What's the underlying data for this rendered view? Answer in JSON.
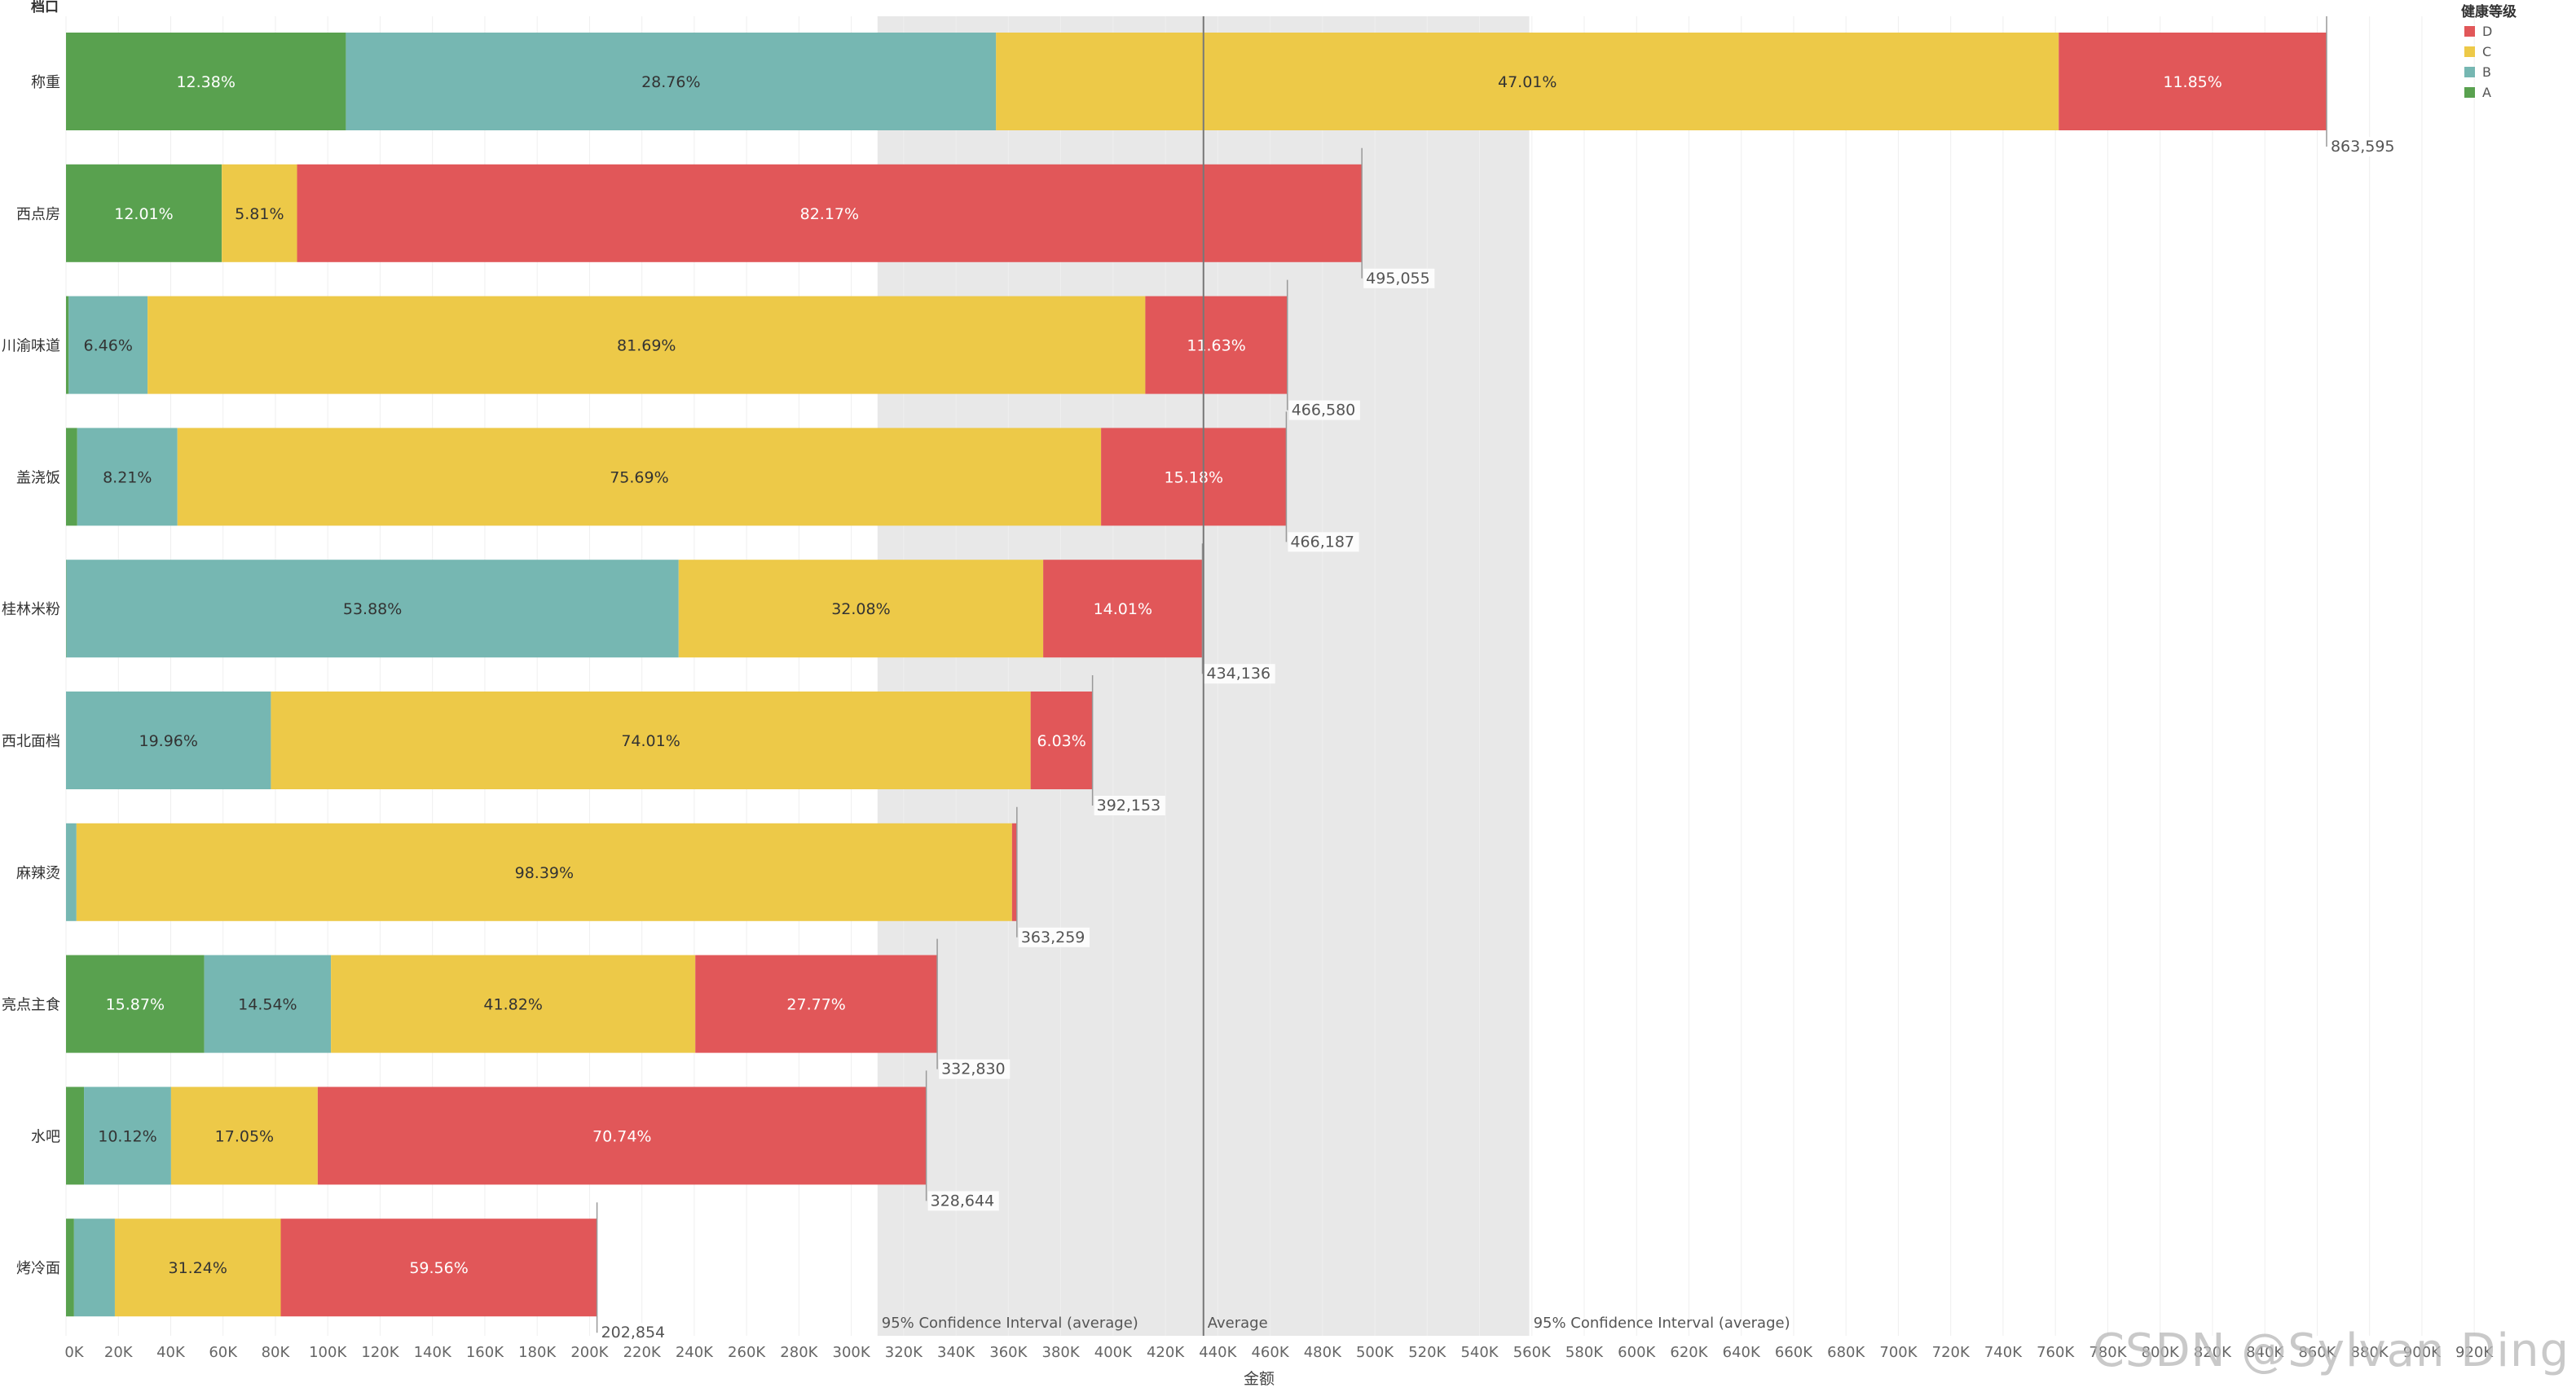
{
  "chart_data": {
    "type": "bar",
    "orientation": "horizontal",
    "stacked": true,
    "row_header": "档口",
    "xlabel": "金额",
    "xlim": [
      0,
      940000
    ],
    "xtick_step": 20000,
    "xtick_labels": [
      "0K",
      "20K",
      "40K",
      "60K",
      "80K",
      "100K",
      "120K",
      "140K",
      "160K",
      "180K",
      "200K",
      "220K",
      "240K",
      "260K",
      "280K",
      "300K",
      "320K",
      "340K",
      "360K",
      "380K",
      "400K",
      "420K",
      "440K",
      "460K",
      "480K",
      "500K",
      "520K",
      "540K",
      "560K",
      "580K",
      "600K",
      "620K",
      "640K",
      "660K",
      "680K",
      "700K",
      "720K",
      "740K",
      "760K",
      "780K",
      "800K",
      "820K",
      "840K",
      "860K",
      "880K",
      "900K",
      "920K"
    ],
    "legend_title": "健康等级",
    "legend_items": [
      {
        "name": "D",
        "color": "#e15759"
      },
      {
        "name": "C",
        "color": "#edc948"
      },
      {
        "name": "B",
        "color": "#76b7b2"
      },
      {
        "name": "A",
        "color": "#59a14f"
      }
    ],
    "colors": {
      "A": "#59a14f",
      "B": "#76b7b2",
      "C": "#edc948",
      "D": "#e15759"
    },
    "stack_order": [
      "A",
      "B",
      "C",
      "D"
    ],
    "categories": [
      {
        "name": "称重",
        "total": 863595,
        "total_label": "863,595",
        "shares": {
          "A": 12.38,
          "B": 28.76,
          "C": 47.01,
          "D": 11.85
        },
        "labels": {
          "A": "12.38%",
          "B": "28.76%",
          "C": "47.01%",
          "D": "11.85%"
        }
      },
      {
        "name": "西点房",
        "total": 495055,
        "total_label": "495,055",
        "shares": {
          "A": 12.01,
          "B": 0.01,
          "C": 5.81,
          "D": 82.17
        },
        "labels": {
          "A": "12.01%",
          "C": "5.81%",
          "D": "82.17%"
        }
      },
      {
        "name": "川渝味道",
        "total": 466580,
        "total_label": "466,580",
        "shares": {
          "A": 0.22,
          "B": 6.46,
          "C": 81.69,
          "D": 11.63
        },
        "labels": {
          "B": "6.46%",
          "C": "81.69%",
          "D": "11.63%"
        }
      },
      {
        "name": "盖浇饭",
        "total": 466187,
        "total_label": "466,187",
        "shares": {
          "A": 0.92,
          "B": 8.21,
          "C": 75.69,
          "D": 15.18
        },
        "labels": {
          "B": "8.21%",
          "C": "75.69%",
          "D": "15.18%"
        }
      },
      {
        "name": "桂林米粉",
        "total": 434136,
        "total_label": "434,136",
        "shares": {
          "A": 0.03,
          "B": 53.88,
          "C": 32.08,
          "D": 14.01
        },
        "labels": {
          "B": "53.88%",
          "C": "32.08%",
          "D": "14.01%"
        }
      },
      {
        "name": "西北面档",
        "total": 392153,
        "total_label": "392,153",
        "shares": {
          "A": 0.0,
          "B": 19.96,
          "C": 74.01,
          "D": 6.03
        },
        "labels": {
          "B": "19.96%",
          "C": "74.01%",
          "D": "6.03%"
        }
      },
      {
        "name": "麻辣烫",
        "total": 363259,
        "total_label": "363,259",
        "shares": {
          "A": 0.0,
          "B": 1.1,
          "C": 98.39,
          "D": 0.51
        },
        "labels": {
          "C": "98.39%"
        }
      },
      {
        "name": "亮点主食",
        "total": 332830,
        "total_label": "332,830",
        "shares": {
          "A": 15.87,
          "B": 14.54,
          "C": 41.82,
          "D": 27.77
        },
        "labels": {
          "A": "15.87%",
          "B": "14.54%",
          "C": "41.82%",
          "D": "27.77%"
        }
      },
      {
        "name": "水吧",
        "total": 328644,
        "total_label": "328,644",
        "shares": {
          "A": 2.09,
          "B": 10.12,
          "C": 17.05,
          "D": 70.74
        },
        "labels": {
          "B": "10.12%",
          "C": "17.05%",
          "D": "70.74%"
        }
      },
      {
        "name": "烤冷面",
        "total": 202854,
        "total_label": "202,854",
        "shares": {
          "A": 1.51,
          "B": 7.69,
          "C": 31.24,
          "D": 59.56
        },
        "labels": {
          "C": "31.24%",
          "D": "59.56%"
        }
      }
    ],
    "reference": {
      "average": 434536,
      "ci_low": 310000,
      "ci_high": 559000,
      "average_label": "Average",
      "ci_label": "95% Confidence Interval (average)"
    },
    "watermark": "CSDN @Sylvan Ding"
  }
}
